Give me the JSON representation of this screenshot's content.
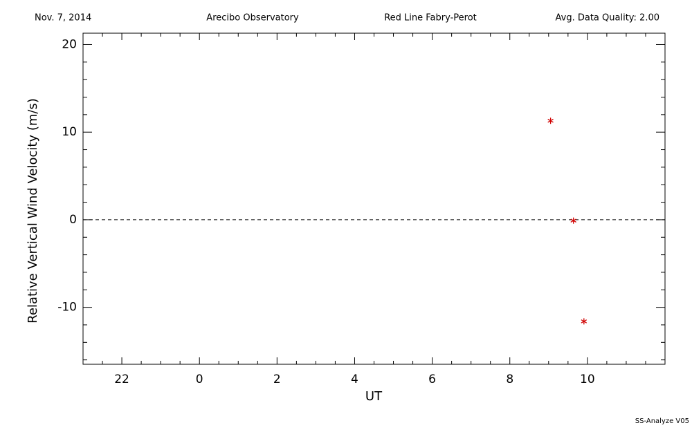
{
  "chart_data": {
    "type": "scatter",
    "header": [
      "Nov. 7, 2014",
      "Arecibo Observatory",
      "Red Line Fabry-Perot",
      "Avg. Data Quality: 2.00"
    ],
    "footer": "SS-Analyze V05",
    "xlabel": "UT",
    "ylabel": "Relative Vertical Wind Velocity (m/s)",
    "x": [
      9.05,
      9.64,
      9.91
    ],
    "values": [
      11.3,
      -0.1,
      -11.6
    ],
    "color": "#d00000",
    "xlim": [
      -3,
      12
    ],
    "ylim": [
      -16.5,
      21.3
    ],
    "xticks": [
      {
        "value": -2,
        "label": "22"
      },
      0,
      2,
      4,
      6,
      8,
      10
    ],
    "yticks": [
      -10,
      0,
      10,
      20
    ],
    "xminorticks": [
      -2.5,
      -1.5,
      -1,
      -0.5,
      0.5,
      1,
      1.5,
      2.5,
      3,
      3.5,
      4.5,
      5,
      5.5,
      6.5,
      7,
      7.5,
      8.5,
      9,
      9.5,
      10.5,
      11,
      11.5
    ],
    "yminorticks": [
      -16,
      -14,
      -12,
      -8,
      -6,
      -4,
      -2,
      2,
      4,
      6,
      8,
      12,
      14,
      16,
      18
    ],
    "zero_line": true
  }
}
